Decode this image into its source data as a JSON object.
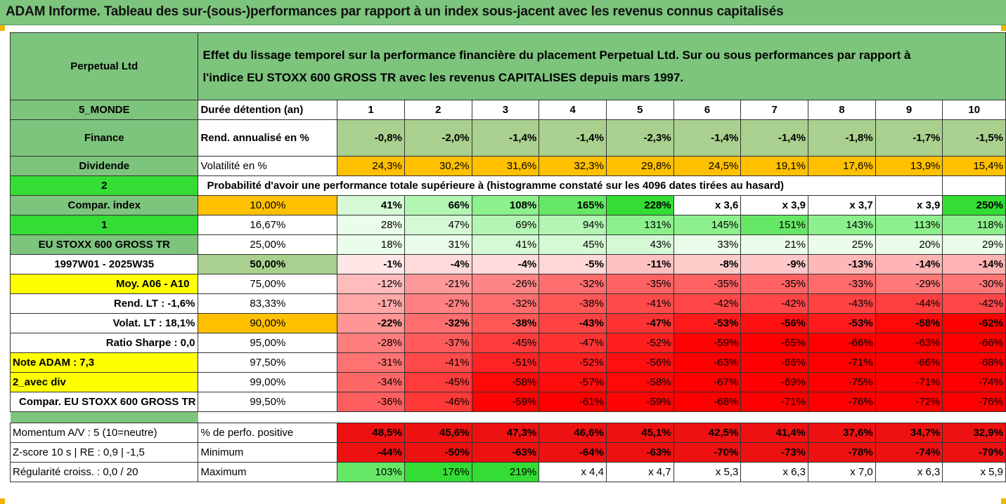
{
  "title": "ADAM Informe. Tableau des sur-(sous-)performances par rapport à un index sous-jacent avec les revenus connus capitalisés",
  "fund_name": "Perpetual Ltd",
  "description_line1": "Effet du lissage temporel sur la performance financière du placement Perpetual Ltd. Sur ou sous performances par rapport à",
  "description_line2": "l'indice EU STOXX 600 GROSS TR avec les revenus CAPITALISES depuis mars 1997.",
  "left_labels": {
    "zone": "5_MONDE",
    "sector": "Finance",
    "dividend": "Dividende",
    "val2": "2",
    "compar": "Compar. index",
    "val1": "1",
    "index_name": "EU STOXX 600 GROSS TR",
    "period": "1997W01 - 2025W35",
    "moy": "Moy. A06 - A10",
    "rend_lt": "Rend. LT :   -1,6%",
    "volat_lt": "Volat. LT :   18,1%",
    "sharpe": "Ratio Sharpe :    0,0",
    "note": "Note ADAM : 7,3",
    "avec_div": "2_avec div",
    "compar2": "Compar. EU STOXX 600 GROSS TR"
  },
  "header": {
    "label": "Durée détention (an)",
    "years": [
      "1",
      "2",
      "3",
      "4",
      "5",
      "6",
      "7",
      "8",
      "9",
      "10"
    ]
  },
  "rend": {
    "label": "Rend. annualisé en %",
    "values": [
      "-0,8%",
      "-2,0%",
      "-1,4%",
      "-1,4%",
      "-2,3%",
      "-1,4%",
      "-1,4%",
      "-1,8%",
      "-1,7%",
      "-1,5%"
    ]
  },
  "volat": {
    "label": "Volatilité en %",
    "values": [
      "24,3%",
      "30,2%",
      "31,6%",
      "32,3%",
      "29,8%",
      "24,5%",
      "19,1%",
      "17,6%",
      "13,9%",
      "15,4%"
    ]
  },
  "proba_title": "Probabilité d'avoir une performance totale supérieure à (histogramme constaté sur les 4096 dates tirées au hasard)",
  "quantiles": [
    {
      "p": "10,00%",
      "values": [
        "41%",
        "66%",
        "108%",
        "165%",
        "228%",
        "x 3,6",
        "x 3,9",
        "x 3,7",
        "x 3,9",
        "250%"
      ]
    },
    {
      "p": "16,67%",
      "values": [
        "28%",
        "47%",
        "69%",
        "94%",
        "131%",
        "145%",
        "151%",
        "143%",
        "113%",
        "118%"
      ]
    },
    {
      "p": "25,00%",
      "values": [
        "18%",
        "31%",
        "41%",
        "45%",
        "43%",
        "33%",
        "21%",
        "25%",
        "20%",
        "29%"
      ]
    },
    {
      "p": "50,00%",
      "values": [
        "-1%",
        "-4%",
        "-4%",
        "-5%",
        "-11%",
        "-8%",
        "-9%",
        "-13%",
        "-14%",
        "-14%"
      ]
    },
    {
      "p": "75,00%",
      "values": [
        "-12%",
        "-21%",
        "-26%",
        "-32%",
        "-35%",
        "-35%",
        "-35%",
        "-33%",
        "-29%",
        "-30%"
      ]
    },
    {
      "p": "83,33%",
      "values": [
        "-17%",
        "-27%",
        "-32%",
        "-38%",
        "-41%",
        "-42%",
        "-42%",
        "-43%",
        "-44%",
        "-42%"
      ]
    },
    {
      "p": "90,00%",
      "values": [
        "-22%",
        "-32%",
        "-38%",
        "-43%",
        "-47%",
        "-53%",
        "-56%",
        "-53%",
        "-58%",
        "-62%"
      ]
    },
    {
      "p": "95,00%",
      "values": [
        "-28%",
        "-37%",
        "-45%",
        "-47%",
        "-52%",
        "-59%",
        "-65%",
        "-66%",
        "-63%",
        "-66%"
      ]
    },
    {
      "p": "97,50%",
      "values": [
        "-31%",
        "-41%",
        "-51%",
        "-52%",
        "-56%",
        "-63%",
        "-66%",
        "-71%",
        "-66%",
        "-68%"
      ]
    },
    {
      "p": "99,00%",
      "values": [
        "-34%",
        "-45%",
        "-58%",
        "-57%",
        "-58%",
        "-67%",
        "-69%",
        "-75%",
        "-71%",
        "-74%"
      ]
    },
    {
      "p": "99,50%",
      "values": [
        "-36%",
        "-46%",
        "-59%",
        "-61%",
        "-59%",
        "-68%",
        "-71%",
        "-76%",
        "-72%",
        "-76%"
      ]
    }
  ],
  "stats": [
    {
      "left": "Momentum A/V : 5 (10=neutre)",
      "label": "% de perfo. positive",
      "values": [
        "48,5%",
        "45,6%",
        "47,3%",
        "46,6%",
        "45,1%",
        "42,5%",
        "41,4%",
        "37,6%",
        "34,7%",
        "32,9%"
      ]
    },
    {
      "left": "Z-score 10 s  |  RE : 0,9  |  -1,5",
      "label": "Minimum",
      "values": [
        "-44%",
        "-50%",
        "-63%",
        "-64%",
        "-63%",
        "-70%",
        "-73%",
        "-78%",
        "-74%",
        "-79%"
      ]
    },
    {
      "left": "Régularité croiss. : 0,0 / 20",
      "label": "Maximum",
      "values": [
        "103%",
        "176%",
        "219%",
        "x 4,4",
        "x 4,7",
        "x 5,3",
        "x 6,3",
        "x 7,0",
        "x 6,3",
        "x 5,9"
      ]
    }
  ],
  "colors": {
    "title_green": "#7dc47d",
    "header_green": "#7dc47d",
    "bright_green": "#33dd33",
    "orange": "#ffc000",
    "yellow": "#ffff00",
    "red": "#e00000"
  }
}
